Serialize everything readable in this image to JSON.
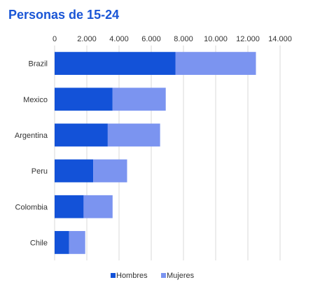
{
  "chart_data": {
    "type": "bar",
    "orientation": "horizontal",
    "stacked": true,
    "title": "Personas de 15-24",
    "categories": [
      "Brazil",
      "Mexico",
      "Argentina",
      "Peru",
      "Colombia",
      "Chile"
    ],
    "series": [
      {
        "name": "Hombres",
        "values": [
          7500,
          3600,
          3300,
          2400,
          1800,
          900
        ],
        "color": "#1352d8"
      },
      {
        "name": "Mujeres",
        "values": [
          5000,
          3300,
          3250,
          2100,
          1800,
          1000
        ],
        "color": "#7b94f0"
      }
    ],
    "xlim": [
      0,
      14000
    ],
    "xticks": [
      0,
      2000,
      4000,
      6000,
      8000,
      10000,
      12000,
      14000
    ],
    "xtick_labels": [
      "0",
      "2.000",
      "4.000",
      "6.000",
      "8.000",
      "10.000",
      "12.000",
      "14.000"
    ],
    "xaxis_position": "top",
    "grid": true,
    "legend": "bottom"
  }
}
